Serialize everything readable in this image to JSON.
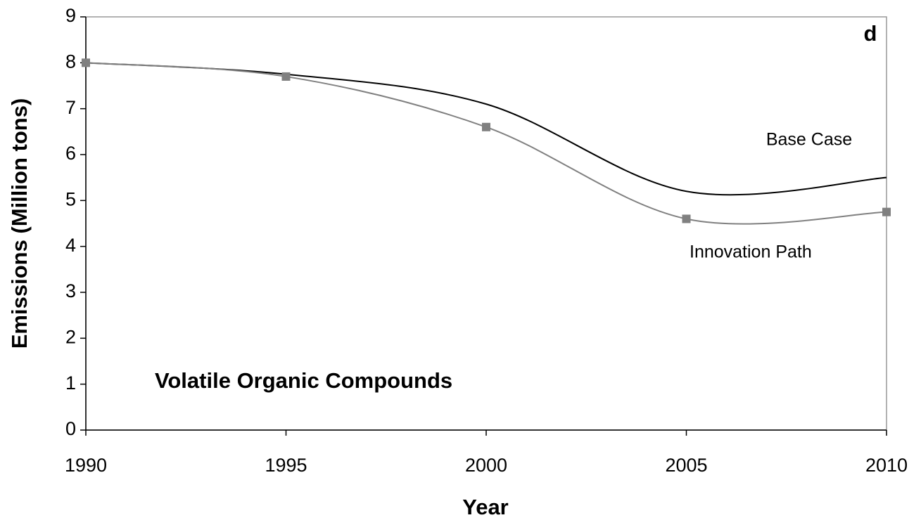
{
  "chart_data": {
    "type": "line",
    "title": "Volatile Organic Compounds",
    "annotation": "d",
    "x_label": "Year",
    "y_label": "Emissions (Million tons)",
    "x": [
      1990,
      1995,
      2000,
      2005,
      2010
    ],
    "series": [
      {
        "name": "Base Case",
        "color": "#000000",
        "markers": false,
        "values": [
          8.0,
          7.75,
          7.1,
          5.2,
          5.5
        ]
      },
      {
        "name": "Innovation Path",
        "color": "#808080",
        "markers": true,
        "values": [
          8.0,
          7.7,
          6.6,
          4.6,
          4.75
        ]
      }
    ],
    "xlim": [
      1990,
      2010
    ],
    "xticks": [
      1990,
      1995,
      2000,
      2005,
      2010
    ],
    "ylim": [
      0,
      9
    ],
    "yticks": [
      0,
      1,
      2,
      3,
      4,
      5,
      6,
      7,
      8,
      9
    ],
    "grid": false
  }
}
